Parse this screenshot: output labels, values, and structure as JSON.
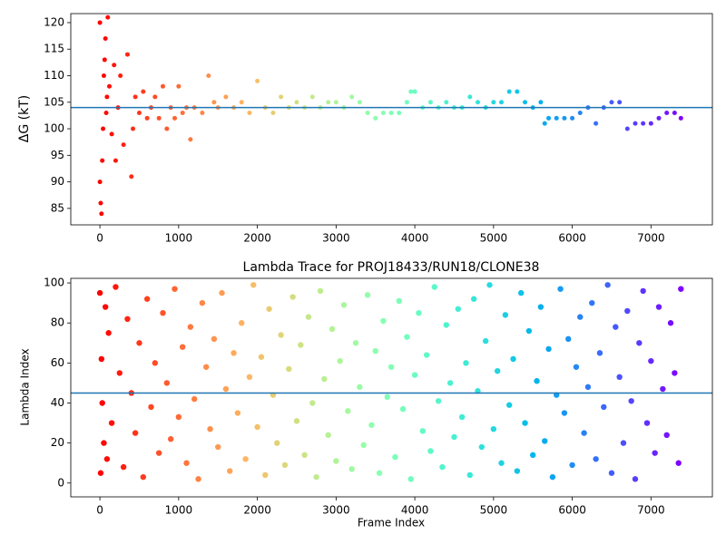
{
  "chart_data": [
    {
      "type": "scatter",
      "ylabel": "ΔG (kT)",
      "colormap": "rainbow",
      "hline": 104,
      "hline_color": "#1f77b4",
      "xlim": [
        -370,
        7780
      ],
      "ylim": [
        81.9,
        121.7
      ],
      "xticks": [
        0,
        1000,
        2000,
        3000,
        4000,
        5000,
        6000,
        7000
      ],
      "yticks": [
        85,
        90,
        95,
        100,
        105,
        110,
        115,
        120
      ],
      "x": [
        0,
        0,
        10,
        20,
        30,
        40,
        50,
        60,
        70,
        80,
        90,
        100,
        120,
        150,
        180,
        200,
        230,
        260,
        300,
        350,
        400,
        420,
        450,
        500,
        550,
        600,
        650,
        700,
        750,
        800,
        850,
        900,
        950,
        1000,
        1050,
        1100,
        1150,
        1200,
        1300,
        1380,
        1450,
        1500,
        1600,
        1700,
        1800,
        1900,
        2000,
        2100,
        2200,
        2300,
        2400,
        2500,
        2600,
        2700,
        2800,
        2900,
        3000,
        3100,
        3200,
        3300,
        3400,
        3500,
        3600,
        3700,
        3800,
        3900,
        3950,
        4000,
        4100,
        4200,
        4300,
        4400,
        4500,
        4600,
        4700,
        4800,
        4900,
        5000,
        5100,
        5200,
        5300,
        5400,
        5500,
        5600,
        5650,
        5700,
        5800,
        5900,
        6000,
        6100,
        6200,
        6300,
        6400,
        6500,
        6600,
        6700,
        6800,
        6900,
        7000,
        7100,
        7200,
        7300,
        7380
      ],
      "values": [
        120,
        90,
        86,
        84,
        94,
        100,
        110,
        113,
        117,
        103,
        106,
        121,
        108,
        99,
        112,
        94,
        104,
        110,
        97,
        114,
        91,
        100,
        106,
        103,
        107,
        102,
        104,
        106,
        102,
        108,
        100,
        104,
        102,
        108,
        103,
        104,
        98,
        104,
        103,
        110,
        105,
        104,
        106,
        104,
        105,
        103,
        109,
        104,
        103,
        106,
        104,
        105,
        104,
        106,
        104,
        105,
        105,
        104,
        106,
        105,
        103,
        102,
        103,
        103,
        103,
        105,
        107,
        107,
        104,
        105,
        104,
        105,
        104,
        104,
        106,
        105,
        104,
        105,
        105,
        107,
        107,
        105,
        104,
        105,
        101,
        102,
        102,
        102,
        102,
        103,
        104,
        101,
        104,
        105,
        105,
        100,
        101,
        101,
        101,
        102,
        103,
        103,
        102
      ]
    },
    {
      "type": "scatter",
      "title": "Lambda Trace for PROJ18433/RUN18/CLONE38",
      "xlabel": "Frame Index",
      "ylabel": "Lambda Index",
      "colormap": "rainbow",
      "hline": 45,
      "hline_color": "#1f77b4",
      "xlim": [
        -370,
        7780
      ],
      "ylim": [
        -6.9,
        102.3
      ],
      "xticks": [
        0,
        1000,
        2000,
        3000,
        4000,
        5000,
        6000,
        7000
      ],
      "yticks": [
        0,
        20,
        40,
        60,
        80,
        100
      ],
      "x": [
        0,
        10,
        20,
        30,
        50,
        70,
        90,
        110,
        150,
        200,
        250,
        300,
        350,
        400,
        450,
        500,
        550,
        600,
        650,
        700,
        750,
        800,
        850,
        900,
        950,
        1000,
        1050,
        1100,
        1150,
        1200,
        1250,
        1300,
        1350,
        1400,
        1450,
        1500,
        1550,
        1600,
        1650,
        1700,
        1750,
        1800,
        1850,
        1900,
        1950,
        2000,
        2050,
        2100,
        2150,
        2200,
        2250,
        2300,
        2350,
        2400,
        2450,
        2500,
        2550,
        2600,
        2650,
        2700,
        2750,
        2800,
        2850,
        2900,
        2950,
        3000,
        3050,
        3100,
        3150,
        3200,
        3250,
        3300,
        3350,
        3400,
        3450,
        3500,
        3550,
        3600,
        3650,
        3700,
        3750,
        3800,
        3850,
        3900,
        3950,
        4000,
        4050,
        4100,
        4150,
        4200,
        4250,
        4300,
        4350,
        4400,
        4450,
        4500,
        4550,
        4600,
        4650,
        4700,
        4750,
        4800,
        4850,
        4900,
        4950,
        5000,
        5050,
        5100,
        5150,
        5200,
        5250,
        5300,
        5350,
        5400,
        5450,
        5500,
        5550,
        5600,
        5650,
        5700,
        5750,
        5800,
        5850,
        5900,
        5950,
        6000,
        6050,
        6100,
        6150,
        6200,
        6250,
        6300,
        6350,
        6400,
        6450,
        6500,
        6550,
        6600,
        6650,
        6700,
        6750,
        6800,
        6850,
        6900,
        6950,
        7000,
        7050,
        7100,
        7150,
        7200,
        7250,
        7300,
        7350,
        7380
      ],
      "values": [
        95,
        5,
        62,
        40,
        20,
        88,
        12,
        75,
        30,
        98,
        55,
        8,
        82,
        45,
        25,
        70,
        3,
        92,
        38,
        60,
        15,
        85,
        50,
        22,
        97,
        33,
        68,
        10,
        78,
        42,
        2,
        90,
        58,
        27,
        72,
        18,
        95,
        47,
        6,
        65,
        35,
        80,
        12,
        53,
        99,
        28,
        63,
        4,
        87,
        44,
        20,
        74,
        9,
        57,
        93,
        31,
        69,
        14,
        83,
        40,
        3,
        96,
        52,
        24,
        77,
        11,
        61,
        89,
        36,
        7,
        70,
        48,
        19,
        94,
        29,
        66,
        5,
        81,
        43,
        58,
        13,
        91,
        37,
        73,
        2,
        54,
        85,
        26,
        64,
        16,
        98,
        41,
        8,
        79,
        50,
        23,
        87,
        33,
        60,
        4,
        92,
        46,
        18,
        71,
        99,
        27,
        56,
        10,
        84,
        39,
        62,
        6,
        95,
        30,
        76,
        14,
        51,
        88,
        21,
        67,
        3,
        44,
        97,
        35,
        72,
        9,
        58,
        83,
        25,
        48,
        90,
        12,
        65,
        38,
        99,
        5,
        78,
        53,
        20,
        86,
        41,
        2,
        70,
        96,
        30,
        61,
        15,
        88,
        47,
        24,
        80,
        55,
        10,
        97
      ]
    }
  ]
}
